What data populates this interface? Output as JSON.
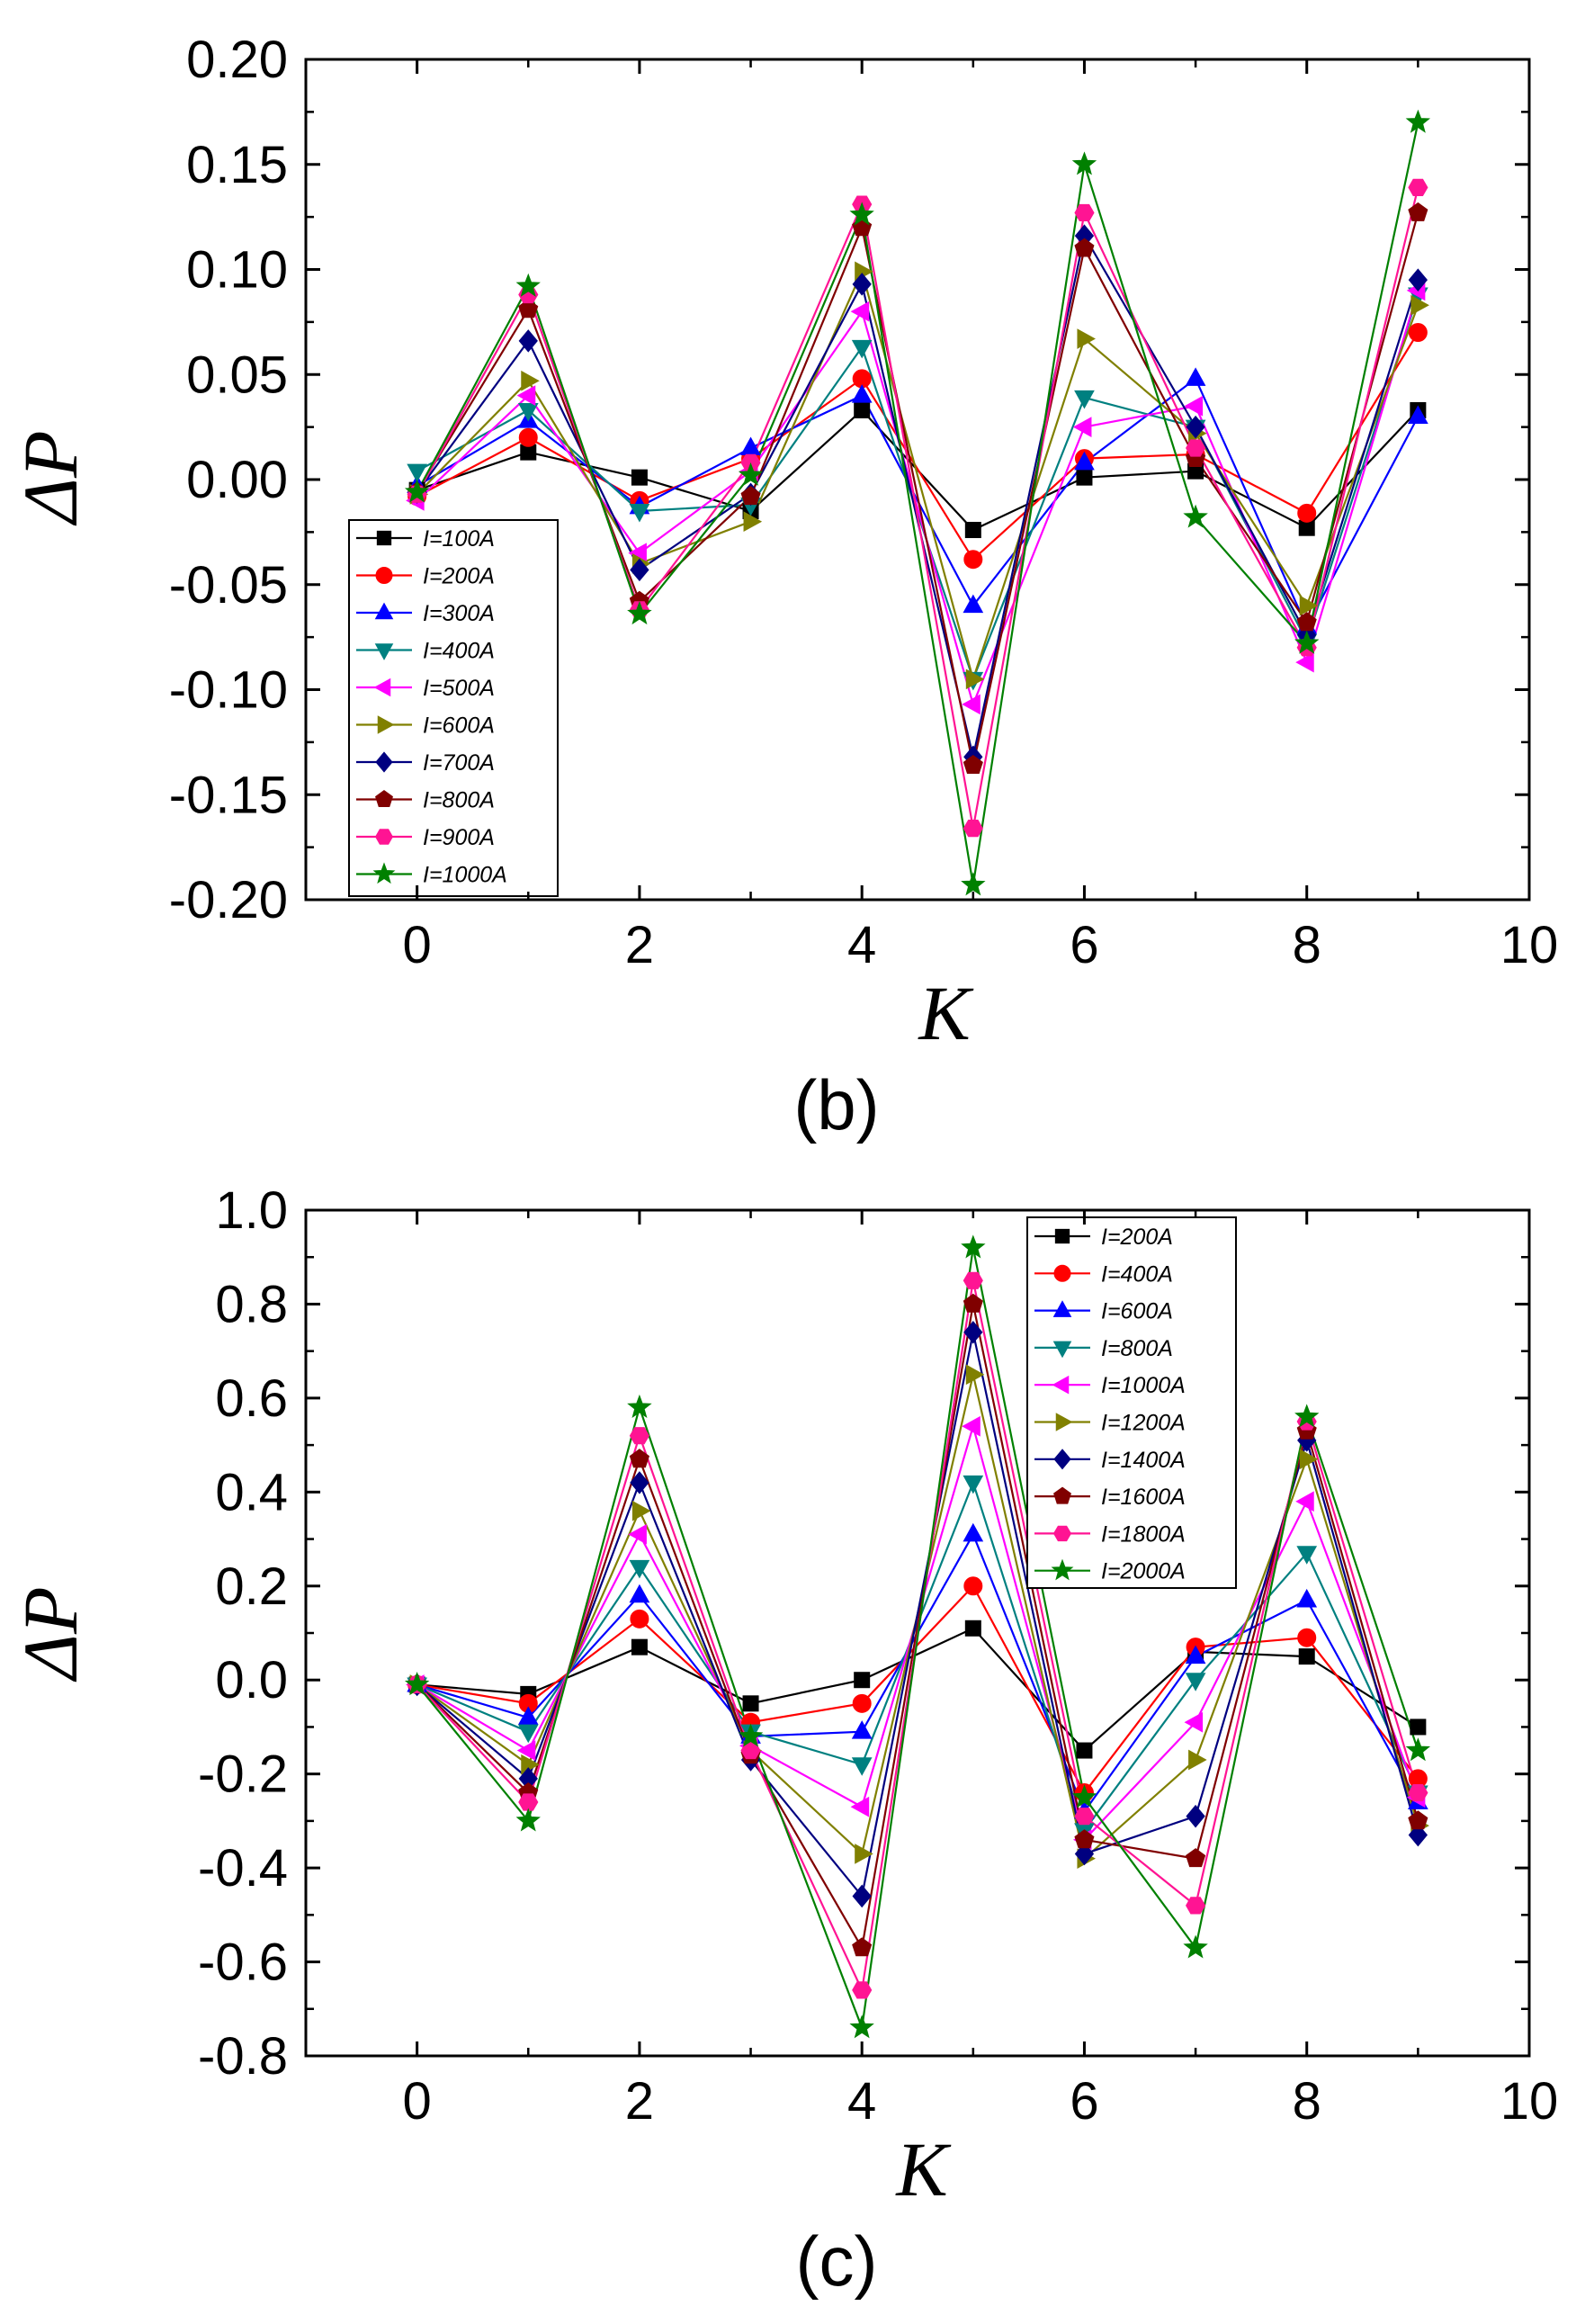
{
  "chart_data": [
    {
      "type": "line",
      "panel_label": "(b)",
      "xlabel": "K",
      "ylabel": "ΔP",
      "xlim": [
        -1,
        10
      ],
      "ylim": [
        -0.2,
        0.2
      ],
      "xticks": [
        0,
        2,
        4,
        6,
        8,
        10
      ],
      "xtick_labels": [
        "0",
        "2",
        "4",
        "6",
        "8",
        "10"
      ],
      "yticks": [
        -0.2,
        -0.15,
        -0.1,
        -0.05,
        0,
        0.05,
        0.1,
        0.15,
        0.2
      ],
      "ytick_labels": [
        "-0.20",
        "-0.15",
        "-0.10",
        "-0.05",
        "0.00",
        "0.05",
        "0.10",
        "0.15",
        "0.20"
      ],
      "grid": false,
      "legend_position": "bottom-left",
      "x": [
        0,
        1,
        2,
        3,
        4,
        5,
        6,
        7,
        8,
        9
      ],
      "series": [
        {
          "name": "I=100A",
          "color": "#000000",
          "marker": "square",
          "values": [
            -0.005,
            0.013,
            0.001,
            -0.015,
            0.033,
            -0.024,
            0.001,
            0.004,
            -0.023,
            0.033
          ]
        },
        {
          "name": "I=200A",
          "color": "#ff0000",
          "marker": "circle",
          "values": [
            -0.008,
            0.02,
            -0.01,
            0.01,
            0.048,
            -0.038,
            0.01,
            0.012,
            -0.016,
            0.07
          ]
        },
        {
          "name": "I=300A",
          "color": "#0000ff",
          "marker": "triangle-up",
          "values": [
            -0.003,
            0.028,
            -0.013,
            0.015,
            0.04,
            -0.06,
            0.008,
            0.048,
            -0.07,
            0.03
          ]
        },
        {
          "name": "I=400A",
          "color": "#008080",
          "marker": "triangle-down",
          "values": [
            0.004,
            0.033,
            -0.015,
            -0.012,
            0.063,
            -0.095,
            0.039,
            0.025,
            -0.077,
            0.088
          ]
        },
        {
          "name": "I=500A",
          "color": "#ff00ff",
          "marker": "triangle-left",
          "values": [
            -0.01,
            0.04,
            -0.035,
            0.004,
            0.08,
            -0.107,
            0.025,
            0.035,
            -0.087,
            0.09
          ]
        },
        {
          "name": "I=600A",
          "color": "#808000",
          "marker": "triangle-right",
          "values": [
            -0.007,
            0.047,
            -0.04,
            -0.02,
            0.099,
            -0.095,
            0.067,
            0.022,
            -0.06,
            0.083
          ]
        },
        {
          "name": "I=700A",
          "color": "#000080",
          "marker": "diamond",
          "values": [
            -0.006,
            0.066,
            -0.043,
            -0.007,
            0.093,
            -0.132,
            0.116,
            0.025,
            -0.074,
            0.095
          ]
        },
        {
          "name": "I=800A",
          "color": "#800000",
          "marker": "pentagon",
          "values": [
            -0.006,
            0.081,
            -0.058,
            -0.008,
            0.12,
            -0.136,
            0.11,
            0.01,
            -0.068,
            0.127
          ]
        },
        {
          "name": "I=900A",
          "color": "#ff1493",
          "marker": "hexagon",
          "values": [
            -0.007,
            0.088,
            -0.062,
            0.008,
            0.131,
            -0.166,
            0.127,
            0.015,
            -0.08,
            0.139
          ]
        },
        {
          "name": "I=1000A",
          "color": "#008000",
          "marker": "star",
          "values": [
            -0.006,
            0.092,
            -0.064,
            0.002,
            0.126,
            -0.193,
            0.15,
            -0.018,
            -0.078,
            0.17
          ]
        }
      ]
    },
    {
      "type": "line",
      "panel_label": "(c)",
      "xlabel": "K",
      "ylabel": "ΔP",
      "xlim": [
        -1,
        10
      ],
      "ylim": [
        -0.8,
        1.0
      ],
      "xticks": [
        0,
        2,
        4,
        6,
        8,
        10
      ],
      "xtick_labels": [
        "0",
        "2",
        "4",
        "6",
        "8",
        "10"
      ],
      "yticks": [
        -0.8,
        -0.6,
        -0.4,
        -0.2,
        0,
        0.2,
        0.4,
        0.6,
        0.8,
        1.0
      ],
      "ytick_labels": [
        "-0.8",
        "-0.6",
        "-0.4",
        "-0.2",
        "0.0",
        "0.2",
        "0.4",
        "0.6",
        "0.8",
        "1.0"
      ],
      "grid": false,
      "legend_position": "top-right",
      "x": [
        0,
        1,
        2,
        3,
        4,
        5,
        6,
        7,
        8,
        9
      ],
      "series": [
        {
          "name": "I=200A",
          "color": "#000000",
          "marker": "square",
          "values": [
            -0.01,
            -0.03,
            0.07,
            -0.05,
            0.0,
            0.11,
            -0.15,
            0.06,
            0.05,
            -0.1
          ]
        },
        {
          "name": "I=400A",
          "color": "#ff0000",
          "marker": "circle",
          "values": [
            -0.01,
            -0.05,
            0.13,
            -0.09,
            -0.05,
            0.2,
            -0.24,
            0.07,
            0.09,
            -0.21
          ]
        },
        {
          "name": "I=600A",
          "color": "#0000ff",
          "marker": "triangle-up",
          "values": [
            -0.01,
            -0.08,
            0.18,
            -0.12,
            -0.11,
            0.31,
            -0.28,
            0.05,
            0.17,
            -0.26
          ]
        },
        {
          "name": "I=800A",
          "color": "#008080",
          "marker": "triangle-down",
          "values": [
            -0.01,
            -0.11,
            0.24,
            -0.11,
            -0.18,
            0.42,
            -0.32,
            0.0,
            0.27,
            -0.24
          ]
        },
        {
          "name": "I=1000A",
          "color": "#ff00ff",
          "marker": "triangle-left",
          "values": [
            -0.01,
            -0.15,
            0.31,
            -0.14,
            -0.27,
            0.54,
            -0.34,
            -0.09,
            0.38,
            -0.25
          ]
        },
        {
          "name": "I=1200A",
          "color": "#808000",
          "marker": "triangle-right",
          "values": [
            -0.01,
            -0.18,
            0.36,
            -0.15,
            -0.37,
            0.65,
            -0.38,
            -0.17,
            0.47,
            -0.31
          ]
        },
        {
          "name": "I=1400A",
          "color": "#000080",
          "marker": "diamond",
          "values": [
            -0.01,
            -0.21,
            0.42,
            -0.17,
            -0.46,
            0.74,
            -0.37,
            -0.29,
            0.51,
            -0.33
          ]
        },
        {
          "name": "I=1600A",
          "color": "#800000",
          "marker": "pentagon",
          "values": [
            -0.01,
            -0.24,
            0.47,
            -0.16,
            -0.57,
            0.8,
            -0.34,
            -0.38,
            0.53,
            -0.3
          ]
        },
        {
          "name": "I=1800A",
          "color": "#ff1493",
          "marker": "hexagon",
          "values": [
            -0.01,
            -0.26,
            0.52,
            -0.15,
            -0.66,
            0.85,
            -0.29,
            -0.48,
            0.55,
            -0.24
          ]
        },
        {
          "name": "I=2000A",
          "color": "#008000",
          "marker": "star",
          "values": [
            -0.01,
            -0.3,
            0.58,
            -0.12,
            -0.74,
            0.92,
            -0.25,
            -0.57,
            0.56,
            -0.15
          ]
        }
      ]
    }
  ]
}
